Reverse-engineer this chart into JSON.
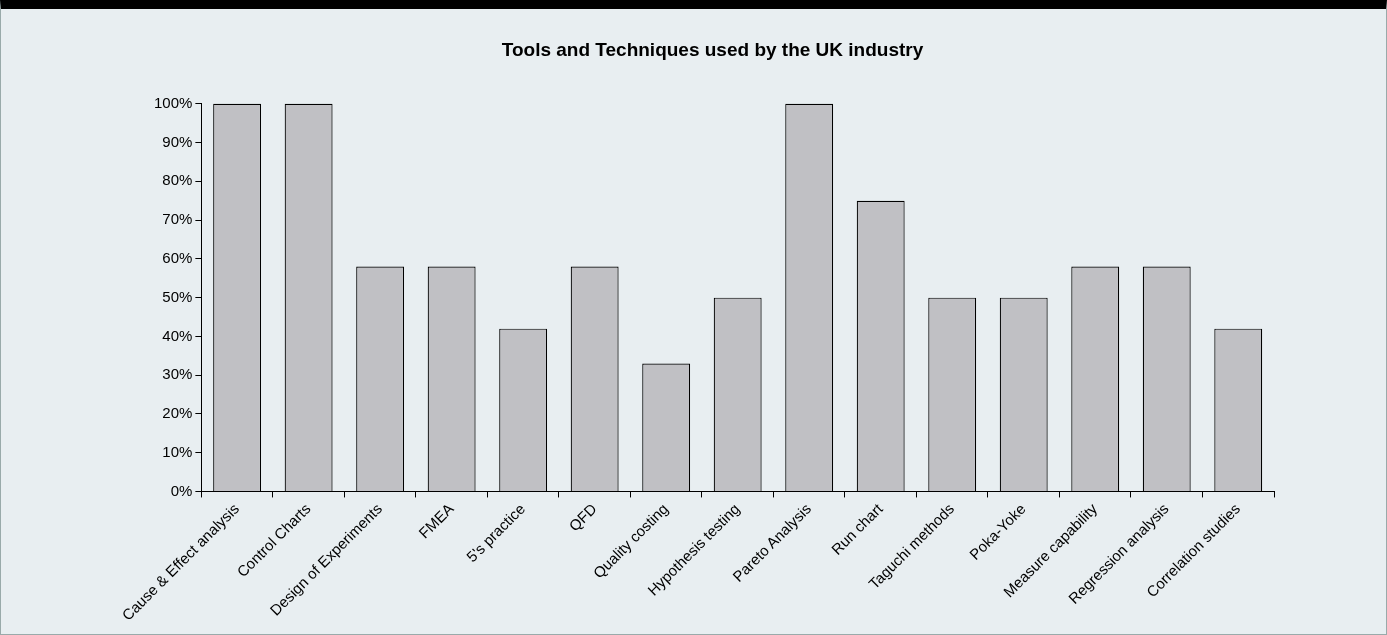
{
  "chart_data": {
    "type": "bar",
    "title": "Tools and Techniques used by the UK industry",
    "categories": [
      "Cause & Effect analysis",
      "Control Charts",
      "Design of Experiments",
      "FMEA",
      "5's practice",
      "QFD",
      "Quality costing",
      "Hypothesis testing",
      "Pareto Analysis",
      "Run chart",
      "Taguchi methods",
      "Poka-Yoke",
      "Measure capability",
      "Regression analysis",
      "Correlation studies"
    ],
    "values": [
      100,
      100,
      58,
      58,
      42,
      58,
      33,
      50,
      100,
      75,
      50,
      50,
      58,
      58,
      42
    ],
    "color": "#c0c0c4",
    "ylim": [
      0,
      100
    ],
    "yticks": [
      {
        "value": 0,
        "label": "0%"
      },
      {
        "value": 10,
        "label": "10%"
      },
      {
        "value": 20,
        "label": "20%"
      },
      {
        "value": 30,
        "label": "30%"
      },
      {
        "value": 40,
        "label": "40%"
      },
      {
        "value": 50,
        "label": "50%"
      },
      {
        "value": 60,
        "label": "60%"
      },
      {
        "value": 70,
        "label": "70%"
      },
      {
        "value": 80,
        "label": "80%"
      },
      {
        "value": 90,
        "label": "90%"
      },
      {
        "value": 100,
        "label": "100%"
      }
    ],
    "grid": false,
    "legend": false
  }
}
